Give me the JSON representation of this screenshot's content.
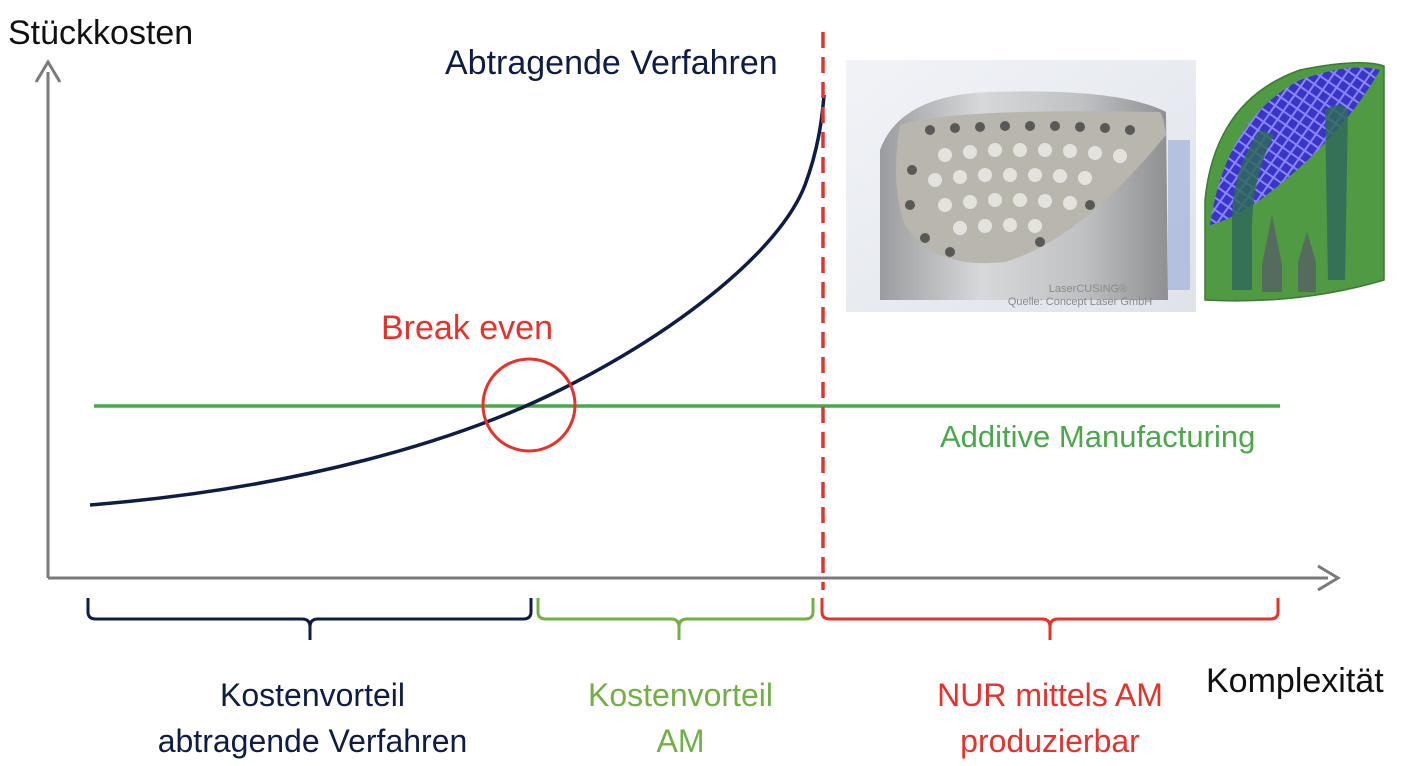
{
  "colors": {
    "navy": "#0f1c44",
    "red": "#e8312a",
    "green": "#4aa84a",
    "light_green": "#72b046",
    "axis": "#7a7a7a"
  },
  "axes": {
    "y_label": "Stückkosten",
    "x_label": "Komplexität"
  },
  "curves": {
    "subtractive_label": "Abtragende Verfahren",
    "additive_label": "Additive Manufacturing"
  },
  "break_even_label": "Break even",
  "regions": [
    {
      "line1": "Kostenvorteil",
      "line2": "abtragende Verfahren"
    },
    {
      "line1": "Kostenvorteil",
      "line2": "AM"
    },
    {
      "line1": "NUR mittels AM",
      "line2": "produzierbar"
    }
  ],
  "photo": {
    "caption_line1": "LaserCUSING®",
    "caption_line2": "Quelle: Concept Laser GmbH"
  }
}
